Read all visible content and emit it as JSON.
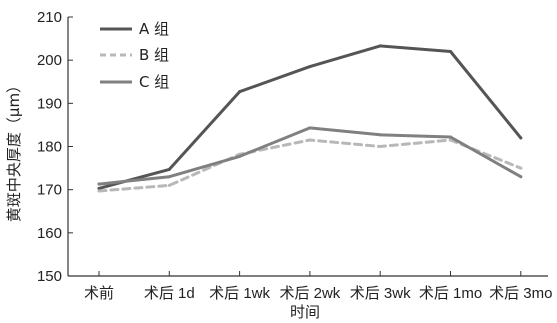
{
  "chart_data": {
    "type": "line",
    "title": "",
    "xlabel": "时间",
    "ylabel": "黄斑中央厚度（μm）",
    "categories": [
      "术前",
      "术后 1d",
      "术后 1wk",
      "术后 2wk",
      "术后 3wk",
      "术后 1mo",
      "术后 3mo"
    ],
    "ylim": [
      150,
      210
    ],
    "yticks": [
      150,
      160,
      170,
      180,
      190,
      200,
      210
    ],
    "grid": false,
    "legend_position": "top-left",
    "series": [
      {
        "name": "A 组",
        "values": [
          170.3,
          174.7,
          192.7,
          198.5,
          203.3,
          202.0,
          182.0
        ],
        "color": "#555555",
        "dash": "solid"
      },
      {
        "name": "B 组",
        "values": [
          169.7,
          171.0,
          178.2,
          181.5,
          180.0,
          181.5,
          175.0
        ],
        "color": "#b8b8b8",
        "dash": "dashed"
      },
      {
        "name": "C 组",
        "values": [
          171.3,
          173.0,
          177.7,
          184.3,
          182.7,
          182.2,
          173.0
        ],
        "color": "#808080",
        "dash": "solid"
      }
    ]
  }
}
